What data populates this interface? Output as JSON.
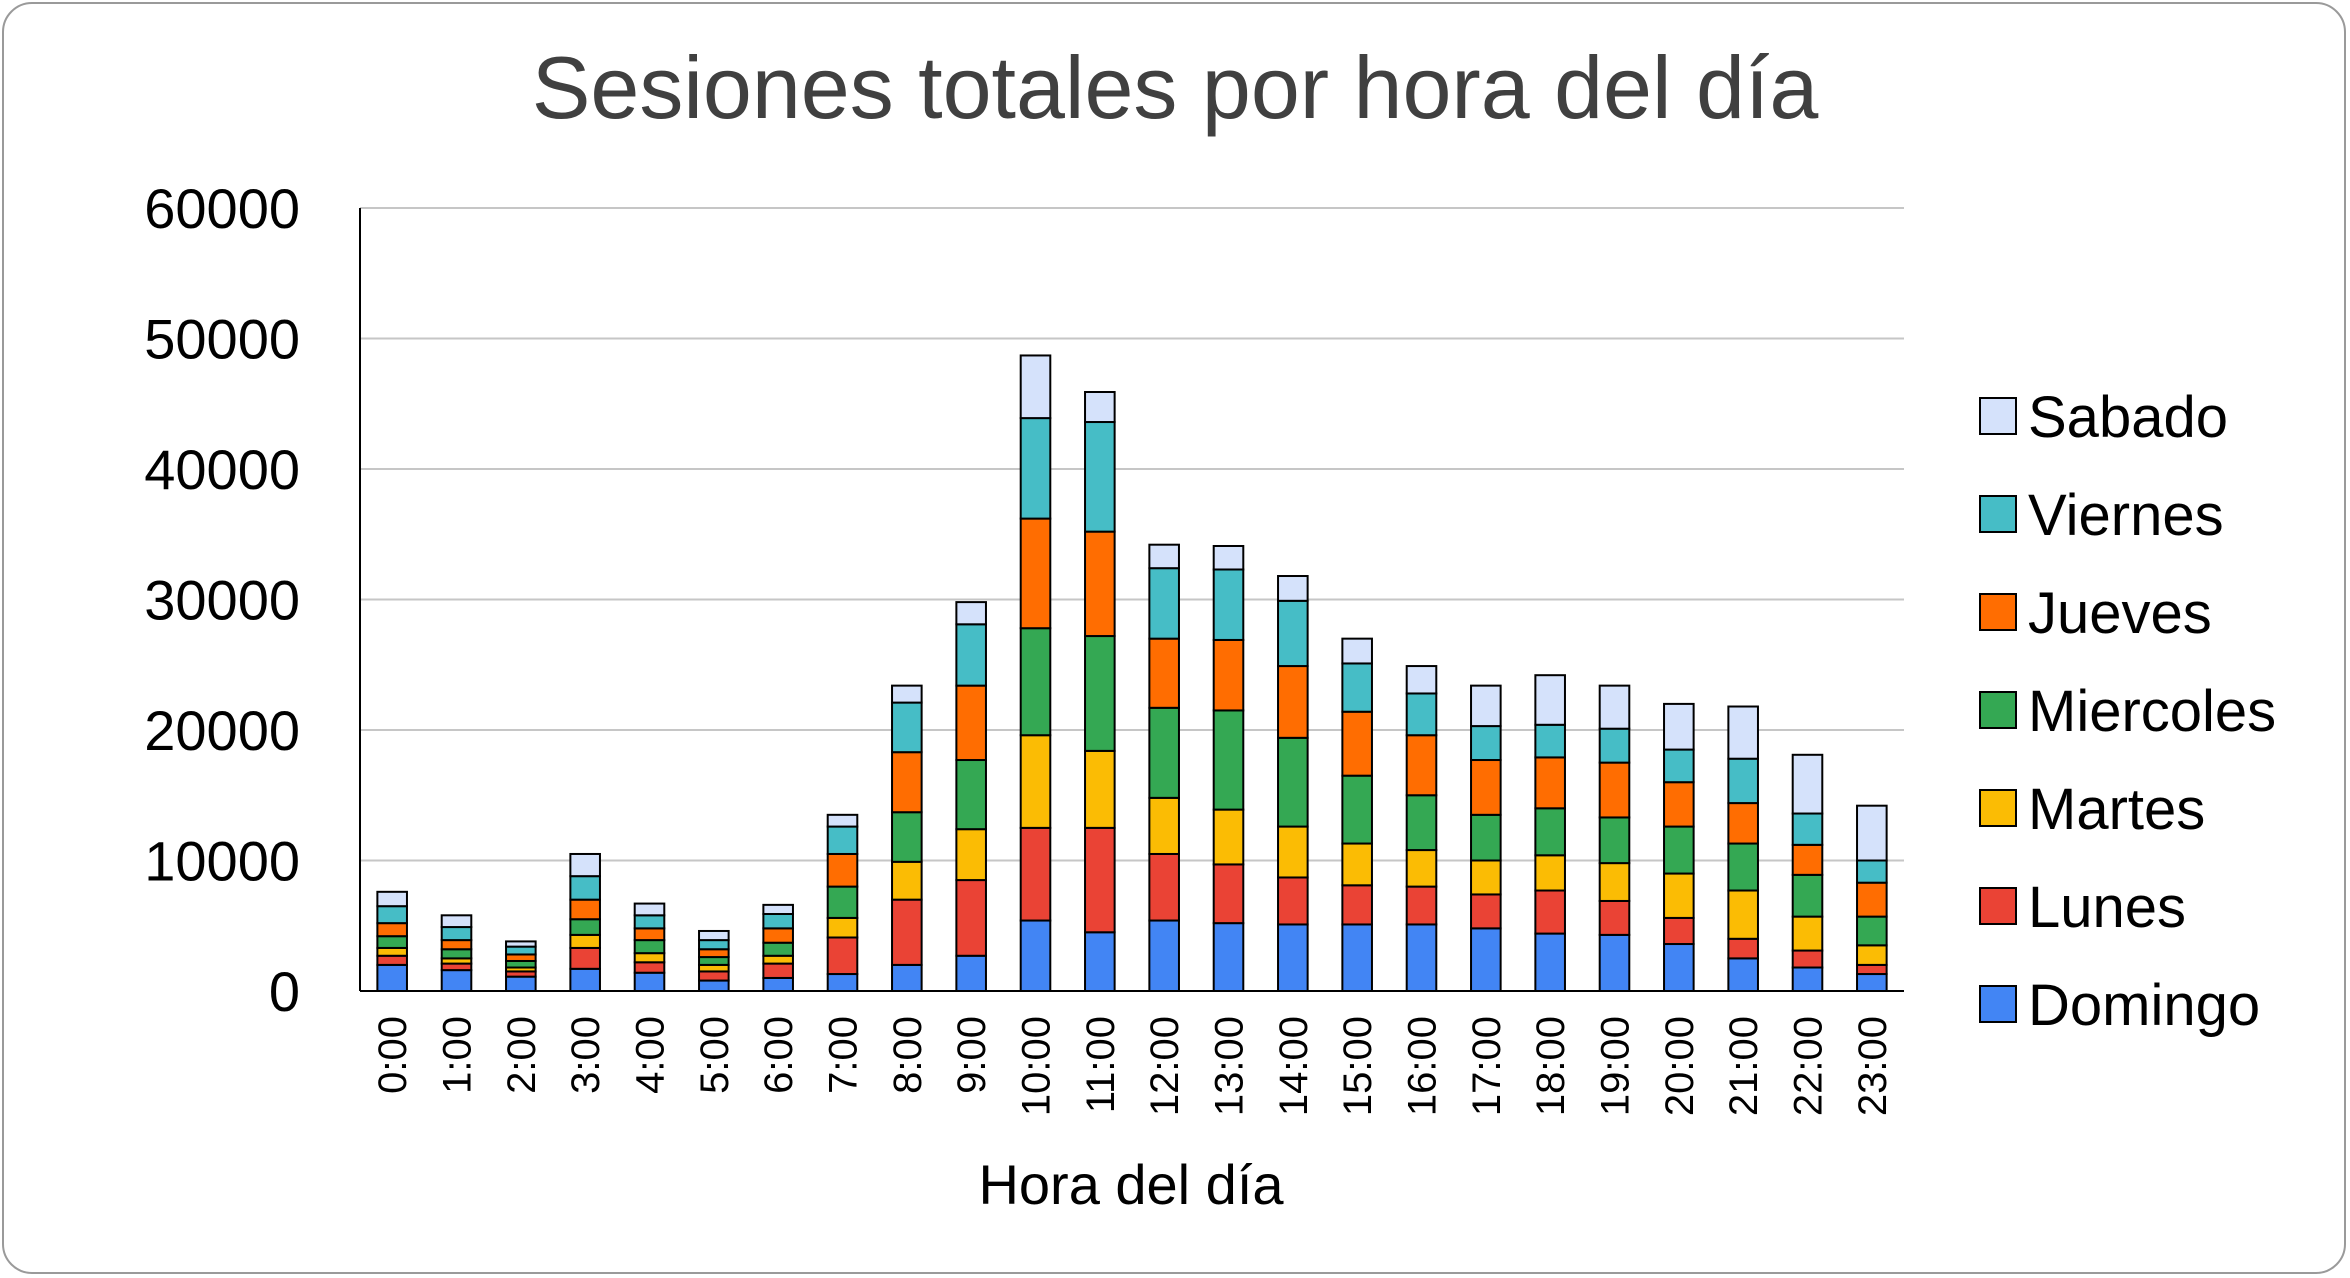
{
  "chart_data": {
    "type": "bar",
    "stacked": true,
    "title": "Sesiones totales por hora del día",
    "xlabel": "Hora del día",
    "ylabel": "",
    "ylim": [
      0,
      60000
    ],
    "yticks": [
      0,
      10000,
      20000,
      30000,
      40000,
      50000,
      60000
    ],
    "grid": true,
    "legend_position": "right",
    "categories": [
      "0:00",
      "1:00",
      "2:00",
      "3:00",
      "4:00",
      "5:00",
      "6:00",
      "7:00",
      "8:00",
      "9:00",
      "10:00",
      "11:00",
      "12:00",
      "13:00",
      "14:00",
      "15:00",
      "16:00",
      "17:00",
      "18:00",
      "19:00",
      "20:00",
      "21:00",
      "22:00",
      "23:00"
    ],
    "series": [
      {
        "name": "Domingo",
        "color": "#4285f4",
        "values": [
          2000,
          1600,
          1100,
          1700,
          1400,
          800,
          1000,
          1300,
          2000,
          2700,
          5400,
          4500,
          5400,
          5200,
          5100,
          5100,
          5100,
          4800,
          4400,
          4300,
          3600,
          2500,
          1800,
          1300
        ]
      },
      {
        "name": "Lunes",
        "color": "#ea4335",
        "values": [
          700,
          500,
          400,
          1600,
          800,
          700,
          1100,
          2800,
          5000,
          5800,
          7100,
          8000,
          5100,
          4500,
          3600,
          3000,
          2900,
          2600,
          3300,
          2600,
          2000,
          1500,
          1300,
          700
        ]
      },
      {
        "name": "Martes",
        "color": "#fbbc04",
        "values": [
          600,
          400,
          300,
          1000,
          700,
          500,
          600,
          1500,
          2900,
          3900,
          7100,
          5900,
          4300,
          4200,
          3900,
          3200,
          2800,
          2600,
          2700,
          2900,
          3400,
          3700,
          2600,
          1500
        ]
      },
      {
        "name": "Miercoles",
        "color": "#34a853",
        "values": [
          900,
          700,
          500,
          1200,
          1000,
          600,
          1000,
          2400,
          3800,
          5300,
          8200,
          8800,
          6900,
          7600,
          6800,
          5200,
          4200,
          3500,
          3600,
          3500,
          3600,
          3600,
          3200,
          2200
        ]
      },
      {
        "name": "Jueves",
        "color": "#ff6d01",
        "values": [
          1000,
          700,
          500,
          1500,
          900,
          600,
          1100,
          2500,
          4600,
          5700,
          8400,
          8000,
          5300,
          5400,
          5500,
          4900,
          4600,
          4200,
          3900,
          4200,
          3400,
          3100,
          2300,
          2600
        ]
      },
      {
        "name": "Viernes",
        "color": "#46bdc6",
        "values": [
          1300,
          1000,
          600,
          1800,
          1000,
          700,
          1100,
          2100,
          3800,
          4700,
          7700,
          8400,
          5400,
          5400,
          5000,
          3700,
          3200,
          2600,
          2500,
          2600,
          2500,
          3400,
          2400,
          1700
        ]
      },
      {
        "name": "Sabado",
        "color": "#d5e2fb",
        "values": [
          1100,
          900,
          400,
          1700,
          900,
          700,
          700,
          900,
          1300,
          1700,
          4800,
          2300,
          1800,
          1800,
          1900,
          1900,
          2100,
          3100,
          3800,
          3300,
          3500,
          4000,
          4500,
          4200
        ]
      }
    ]
  }
}
